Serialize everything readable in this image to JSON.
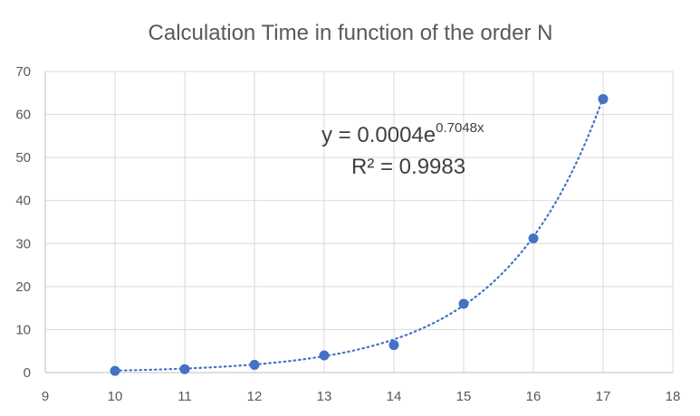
{
  "chart_data": {
    "type": "scatter",
    "title": "Calculation Time in function of the order N",
    "xlabel": "",
    "ylabel": "",
    "xlim": [
      9,
      18
    ],
    "ylim": [
      0,
      70
    ],
    "x_ticks": [
      9,
      10,
      11,
      12,
      13,
      14,
      15,
      16,
      17,
      18
    ],
    "y_ticks": [
      0,
      10,
      20,
      30,
      40,
      50,
      60,
      70
    ],
    "grid": true,
    "series": [
      {
        "x": [
          10,
          11,
          12,
          13,
          14,
          15,
          16,
          17
        ],
        "y": [
          0.4,
          0.8,
          1.8,
          4.0,
          6.4,
          16.0,
          31.2,
          63.6
        ],
        "color": "#4472C4"
      }
    ],
    "trendline": {
      "type": "exponential",
      "a": 0.0004,
      "b": 0.7048,
      "r2": 0.9983,
      "style": "dotted",
      "color": "#4472C4"
    },
    "annotations": {
      "equation_base": "y = 0.0004e",
      "equation_exponent": "0.7048x",
      "r_squared": "R² = 0.9983"
    }
  }
}
